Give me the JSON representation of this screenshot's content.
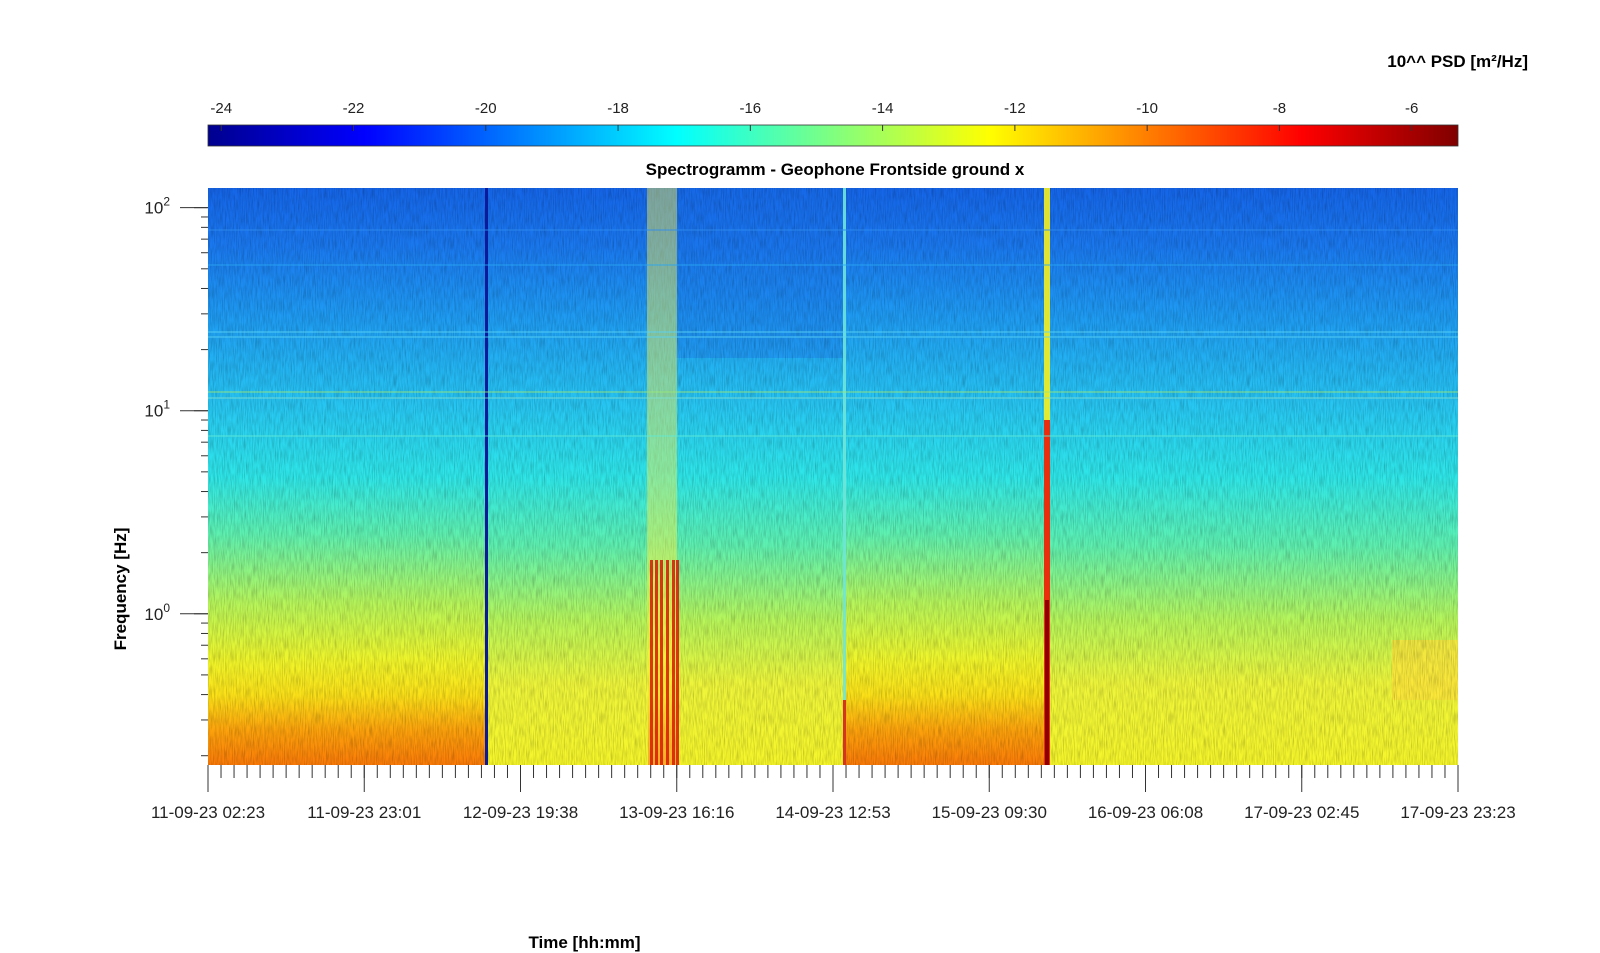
{
  "chart_data": {
    "type": "heatmap",
    "title": "Spectrogramm - Geophone Frontside ground x",
    "xlabel": "Time [hh:mm]",
    "ylabel": "Frequency [Hz]",
    "x_ticklabels": [
      "11-09-23 02:23",
      "11-09-23 23:01",
      "12-09-23 19:38",
      "13-09-23 16:16",
      "14-09-23 12:53",
      "15-09-23 09:30",
      "16-09-23 06:08",
      "17-09-23 02:45",
      "17-09-23 23:23"
    ],
    "y_scale": "log",
    "y_major_ticks": [
      {
        "value": 1,
        "base": "10",
        "exp": "0"
      },
      {
        "value": 10,
        "base": "10",
        "exp": "1"
      },
      {
        "value": 100,
        "base": "10",
        "exp": "2"
      }
    ],
    "ylim": [
      0.18,
      125
    ],
    "colorbar": {
      "label": "10^^ PSD [m²/Hz]",
      "colormap": "jet",
      "ticks": [
        "-24",
        "-22",
        "-20",
        "-18",
        "-16",
        "-14",
        "-12",
        "-10",
        "-8",
        "-6"
      ],
      "range": [
        -24.2,
        -5.3
      ],
      "location": "top"
    }
  }
}
